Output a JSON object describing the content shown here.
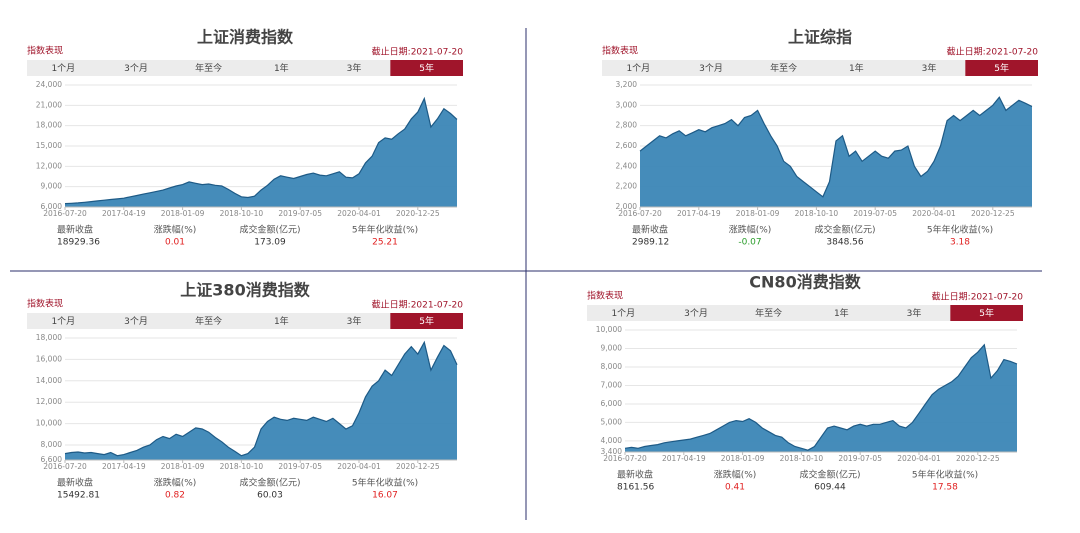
{
  "chart_data": [
    {
      "type": "area",
      "title": "上证消费指数",
      "section_label": "指数表现",
      "date_label": "截止日期:2021-07-20",
      "tabs": [
        "1个月",
        "3个月",
        "年至今",
        "1年",
        "3年",
        "5年"
      ],
      "active_tab": 5,
      "color": "#3b86b6",
      "categories": [
        "2016-07-20",
        null,
        null,
        null,
        null,
        null,
        null,
        null,
        null,
        "2017-04-19",
        null,
        null,
        null,
        null,
        null,
        null,
        null,
        null,
        "2018-01-09",
        null,
        null,
        null,
        null,
        null,
        null,
        null,
        null,
        "2018-10-10",
        null,
        null,
        null,
        null,
        null,
        null,
        null,
        null,
        "2019-07-05",
        null,
        null,
        null,
        null,
        null,
        null,
        null,
        null,
        "2020-04-01",
        null,
        null,
        null,
        null,
        null,
        null,
        null,
        null,
        "2020-12-25",
        null,
        null,
        null,
        null,
        null,
        null
      ],
      "values": [
        6500,
        6550,
        6600,
        6700,
        6800,
        6900,
        7000,
        7100,
        7200,
        7300,
        7500,
        7700,
        7900,
        8100,
        8300,
        8500,
        8800,
        9100,
        9300,
        9700,
        9500,
        9300,
        9400,
        9200,
        9100,
        8600,
        8000,
        7500,
        7400,
        7600,
        8500,
        9200,
        10100,
        10600,
        10400,
        10200,
        10500,
        10800,
        11000,
        10700,
        10600,
        10900,
        11200,
        10400,
        10300,
        10900,
        12500,
        13500,
        15500,
        16200,
        16000,
        16800,
        17500,
        19000,
        20000,
        22000,
        17800,
        19000,
        20500,
        19800,
        18929
      ],
      "ylim": [
        6000,
        24000
      ],
      "yticks": [
        {
          "value": 6000,
          "label": "6,000"
        },
        {
          "value": 9000,
          "label": "9,000"
        },
        {
          "value": 12000,
          "label": "12,000"
        },
        {
          "value": 15000,
          "label": "15,000"
        },
        {
          "value": 18000,
          "label": "18,000"
        },
        {
          "value": 21000,
          "label": "21,000"
        },
        {
          "value": 24000,
          "label": "24,000"
        }
      ],
      "stats": [
        {
          "label": "最新收盘",
          "value": 18929.36,
          "color": "#333333"
        },
        {
          "label": "涨跌幅(%)",
          "value": 0.01,
          "color": "#e02020"
        },
        {
          "label": "成交金额(亿元)",
          "value": 173.09,
          "color": "#333333"
        },
        {
          "label": "5年年化收益(%)",
          "value": 25.21,
          "color": "#e02020"
        }
      ]
    },
    {
      "type": "area",
      "title": "上证综指",
      "section_label": "指数表现",
      "date_label": "截止日期:2021-07-20",
      "tabs": [
        "1个月",
        "3个月",
        "年至今",
        "1年",
        "3年",
        "5年"
      ],
      "active_tab": 5,
      "color": "#3b86b6",
      "categories": [
        "2016-07-20",
        null,
        null,
        null,
        null,
        null,
        null,
        null,
        null,
        "2017-04-19",
        null,
        null,
        null,
        null,
        null,
        null,
        null,
        null,
        "2018-01-09",
        null,
        null,
        null,
        null,
        null,
        null,
        null,
        null,
        "2018-10-10",
        null,
        null,
        null,
        null,
        null,
        null,
        null,
        null,
        "2019-07-05",
        null,
        null,
        null,
        null,
        null,
        null,
        null,
        null,
        "2020-04-01",
        null,
        null,
        null,
        null,
        null,
        null,
        null,
        null,
        "2020-12-25",
        null,
        null,
        null,
        null,
        null,
        null
      ],
      "values": [
        2550,
        2600,
        2650,
        2700,
        2680,
        2720,
        2750,
        2700,
        2730,
        2760,
        2740,
        2780,
        2800,
        2820,
        2860,
        2800,
        2880,
        2900,
        2950,
        2820,
        2700,
        2600,
        2450,
        2400,
        2300,
        2250,
        2200,
        2150,
        2100,
        2250,
        2650,
        2700,
        2500,
        2550,
        2450,
        2500,
        2550,
        2500,
        2480,
        2550,
        2560,
        2600,
        2400,
        2300,
        2350,
        2450,
        2600,
        2850,
        2900,
        2850,
        2900,
        2950,
        2900,
        2950,
        3000,
        3080,
        2950,
        3000,
        3050,
        3020,
        2989
      ],
      "ylim": [
        2000,
        3200
      ],
      "yticks": [
        {
          "value": 2000,
          "label": "2,000"
        },
        {
          "value": 2200,
          "label": "2,200"
        },
        {
          "value": 2400,
          "label": "2,400"
        },
        {
          "value": 2600,
          "label": "2,600"
        },
        {
          "value": 2800,
          "label": "2,800"
        },
        {
          "value": 3000,
          "label": "3,000"
        },
        {
          "value": 3200,
          "label": "3,200"
        }
      ],
      "stats": [
        {
          "label": "最新收盘",
          "value": 2989.12,
          "color": "#333333"
        },
        {
          "label": "涨跌幅(%)",
          "value": -0.07,
          "color": "#2a9d2a"
        },
        {
          "label": "成交金额(亿元)",
          "value": 3848.56,
          "color": "#333333"
        },
        {
          "label": "5年年化收益(%)",
          "value": 3.18,
          "color": "#e02020"
        }
      ]
    },
    {
      "type": "area",
      "title": "上证380消费指数",
      "section_label": "指数表现",
      "date_label": "截止日期:2021-07-20",
      "tabs": [
        "1个月",
        "3个月",
        "年至今",
        "1年",
        "3年",
        "5年"
      ],
      "active_tab": 5,
      "color": "#3b86b6",
      "categories": [
        "2016-07-20",
        null,
        null,
        null,
        null,
        null,
        null,
        null,
        null,
        "2017-04-19",
        null,
        null,
        null,
        null,
        null,
        null,
        null,
        null,
        "2018-01-09",
        null,
        null,
        null,
        null,
        null,
        null,
        null,
        null,
        "2018-10-10",
        null,
        null,
        null,
        null,
        null,
        null,
        null,
        null,
        "2019-07-05",
        null,
        null,
        null,
        null,
        null,
        null,
        null,
        null,
        "2020-04-01",
        null,
        null,
        null,
        null,
        null,
        null,
        null,
        null,
        "2020-12-25",
        null,
        null,
        null,
        null,
        null,
        null
      ],
      "values": [
        7200,
        7300,
        7350,
        7250,
        7300,
        7200,
        7100,
        7300,
        7000,
        7100,
        7300,
        7500,
        7800,
        8000,
        8500,
        8800,
        8600,
        9000,
        8800,
        9200,
        9600,
        9500,
        9200,
        8700,
        8300,
        7800,
        7400,
        7000,
        7200,
        7800,
        9500,
        10200,
        10600,
        10400,
        10300,
        10500,
        10400,
        10300,
        10600,
        10400,
        10200,
        10500,
        10000,
        9500,
        9800,
        11000,
        12500,
        13500,
        14000,
        15000,
        14500,
        15500,
        16500,
        17200,
        16500,
        17600,
        15000,
        16200,
        17300,
        16800,
        15493
      ],
      "ylim": [
        6600,
        18000
      ],
      "yticks": [
        {
          "value": 6600,
          "label": "6,600"
        },
        {
          "value": 8000,
          "label": "8,000"
        },
        {
          "value": 10000,
          "label": "10,000"
        },
        {
          "value": 12000,
          "label": "12,000"
        },
        {
          "value": 14000,
          "label": "14,000"
        },
        {
          "value": 16000,
          "label": "16,000"
        },
        {
          "value": 18000,
          "label": "18,000"
        }
      ],
      "stats": [
        {
          "label": "最新收盘",
          "value": 15492.81,
          "color": "#333333"
        },
        {
          "label": "涨跌幅(%)",
          "value": 0.82,
          "color": "#e02020"
        },
        {
          "label": "成交金额(亿元)",
          "value": 60.03,
          "color": "#333333"
        },
        {
          "label": "5年年化收益(%)",
          "value": 16.07,
          "color": "#e02020"
        }
      ]
    },
    {
      "type": "area",
      "title": "CN80消费指数",
      "section_label": "指数表现",
      "date_label": "截止日期:2021-07-20",
      "tabs": [
        "1个月",
        "3个月",
        "年至今",
        "1年",
        "3年",
        "5年"
      ],
      "active_tab": 5,
      "color": "#3b86b6",
      "categories": [
        "2016-07-20",
        null,
        null,
        null,
        null,
        null,
        null,
        null,
        null,
        "2017-04-19",
        null,
        null,
        null,
        null,
        null,
        null,
        null,
        null,
        "2018-01-09",
        null,
        null,
        null,
        null,
        null,
        null,
        null,
        null,
        "2018-10-10",
        null,
        null,
        null,
        null,
        null,
        null,
        null,
        null,
        "2019-07-05",
        null,
        null,
        null,
        null,
        null,
        null,
        null,
        null,
        "2020-04-01",
        null,
        null,
        null,
        null,
        null,
        null,
        null,
        null,
        "2020-12-25",
        null,
        null,
        null,
        null,
        null,
        null
      ],
      "values": [
        3600,
        3650,
        3600,
        3700,
        3750,
        3800,
        3900,
        3950,
        4000,
        4050,
        4100,
        4200,
        4300,
        4400,
        4600,
        4800,
        5000,
        5100,
        5050,
        5200,
        5000,
        4700,
        4500,
        4300,
        4200,
        3900,
        3700,
        3600,
        3500,
        3700,
        4200,
        4700,
        4800,
        4700,
        4600,
        4800,
        4900,
        4800,
        4900,
        4900,
        5000,
        5100,
        4800,
        4700,
        5000,
        5500,
        6000,
        6500,
        6800,
        7000,
        7200,
        7500,
        8000,
        8500,
        8800,
        9200,
        7400,
        7800,
        8400,
        8300,
        8162
      ],
      "ylim": [
        3400,
        10000
      ],
      "yticks": [
        {
          "value": 3400,
          "label": "3,400"
        },
        {
          "value": 4000,
          "label": "4,000"
        },
        {
          "value": 5000,
          "label": "5,000"
        },
        {
          "value": 6000,
          "label": "6,000"
        },
        {
          "value": 7000,
          "label": "7,000"
        },
        {
          "value": 8000,
          "label": "8,000"
        },
        {
          "value": 9000,
          "label": "9,000"
        },
        {
          "value": 10000,
          "label": "10,000"
        }
      ],
      "stats": [
        {
          "label": "最新收盘",
          "value": 8161.56,
          "color": "#333333"
        },
        {
          "label": "涨跌幅(%)",
          "value": 0.41,
          "color": "#e02020"
        },
        {
          "label": "成交金额(亿元)",
          "value": 609.44,
          "color": "#333333"
        },
        {
          "label": "5年年化收益(%)",
          "value": 17.58,
          "color": "#e02020"
        }
      ]
    }
  ]
}
